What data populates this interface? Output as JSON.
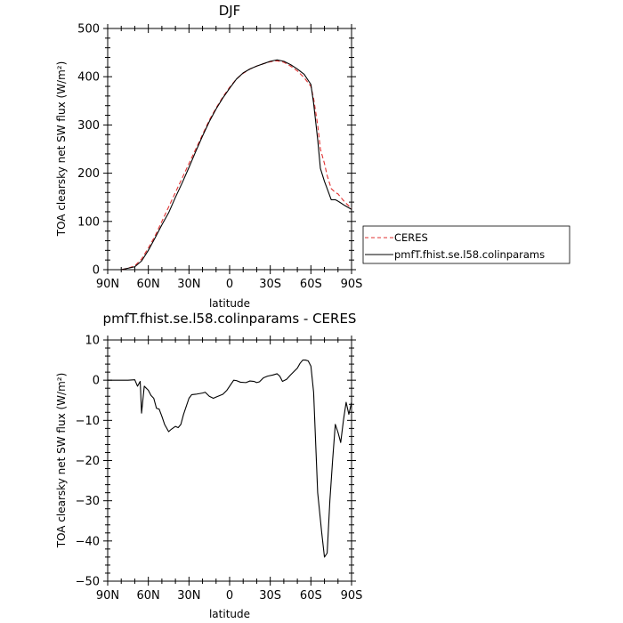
{
  "chart_data": [
    {
      "type": "line",
      "title": "DJF",
      "xlabel": "latitude",
      "ylabel": "TOA clearsky net SW flux (W/m²)",
      "xlim": [
        90,
        -90
      ],
      "ylim": [
        0,
        500
      ],
      "x_tick_labels": [
        "90N",
        "60N",
        "30N",
        "0",
        "30S",
        "60S",
        "90S"
      ],
      "y_tick_labels": [
        "0",
        "100",
        "200",
        "300",
        "400",
        "500"
      ],
      "y_ticks": [
        0,
        100,
        200,
        300,
        400,
        500
      ],
      "grid": false,
      "legend_position": "outside-right",
      "series": [
        {
          "name": "CERES",
          "color": "#e03030",
          "dash": "dashed",
          "points": [
            [
              90,
              0
            ],
            [
              80,
              0
            ],
            [
              75,
              3
            ],
            [
              70,
              8
            ],
            [
              65,
              22
            ],
            [
              60,
              45
            ],
            [
              55,
              70
            ],
            [
              50,
              100
            ],
            [
              45,
              130
            ],
            [
              40,
              160
            ],
            [
              35,
              190
            ],
            [
              30,
              220
            ],
            [
              25,
              250
            ],
            [
              20,
              280
            ],
            [
              15,
              310
            ],
            [
              10,
              335
            ],
            [
              5,
              358
            ],
            [
              0,
              378
            ],
            [
              -5,
              395
            ],
            [
              -10,
              407
            ],
            [
              -15,
              416
            ],
            [
              -20,
              422
            ],
            [
              -25,
              427
            ],
            [
              -30,
              431
            ],
            [
              -35,
              433
            ],
            [
              -40,
              430
            ],
            [
              -45,
              422
            ],
            [
              -50,
              412
            ],
            [
              -55,
              398
            ],
            [
              -60,
              380
            ],
            [
              -62,
              355
            ],
            [
              -65,
              300
            ],
            [
              -67,
              250
            ],
            [
              -70,
              220
            ],
            [
              -72,
              195
            ],
            [
              -75,
              168
            ],
            [
              -78,
              160
            ],
            [
              -80,
              157
            ],
            [
              -85,
              140
            ],
            [
              -90,
              127
            ]
          ]
        },
        {
          "name": "pmfT.fhist.se.l58.colinparams",
          "color": "#000000",
          "dash": "solid",
          "points": [
            [
              90,
              0
            ],
            [
              80,
              0
            ],
            [
              75,
              3
            ],
            [
              70,
              6
            ],
            [
              65,
              18
            ],
            [
              60,
              40
            ],
            [
              55,
              66
            ],
            [
              50,
              93
            ],
            [
              45,
              118
            ],
            [
              40,
              150
            ],
            [
              35,
              180
            ],
            [
              30,
              212
            ],
            [
              25,
              245
            ],
            [
              20,
              277
            ],
            [
              15,
              307
            ],
            [
              10,
              333
            ],
            [
              5,
              356
            ],
            [
              0,
              376
            ],
            [
              -5,
              395
            ],
            [
              -10,
              408
            ],
            [
              -15,
              416
            ],
            [
              -20,
              422
            ],
            [
              -25,
              427
            ],
            [
              -30,
              432
            ],
            [
              -35,
              435
            ],
            [
              -40,
              432
            ],
            [
              -45,
              425
            ],
            [
              -50,
              416
            ],
            [
              -55,
              405
            ],
            [
              -60,
              384
            ],
            [
              -62,
              345
            ],
            [
              -65,
              270
            ],
            [
              -67,
              210
            ],
            [
              -70,
              183
            ],
            [
              -72,
              168
            ],
            [
              -75,
              145
            ],
            [
              -78,
              145
            ],
            [
              -80,
              142
            ],
            [
              -85,
              133
            ],
            [
              -90,
              125
            ]
          ]
        }
      ]
    },
    {
      "type": "line",
      "title": "pmfT.fhist.se.l58.colinparams - CERES",
      "xlabel": "latitude",
      "ylabel": "TOA clearsky net SW flux (W/m²)",
      "xlim": [
        90,
        -90
      ],
      "ylim": [
        -50,
        10
      ],
      "x_tick_labels": [
        "90N",
        "60N",
        "30N",
        "0",
        "30S",
        "60S",
        "90S"
      ],
      "y_tick_labels": [
        "10",
        "0",
        "−10",
        "−20",
        "−30",
        "−40",
        "−50"
      ],
      "y_ticks": [
        10,
        0,
        -10,
        -20,
        -30,
        -40,
        -50
      ],
      "grid": false,
      "series": [
        {
          "name": "",
          "color": "#000000",
          "dash": "solid",
          "points": [
            [
              90,
              0
            ],
            [
              75,
              0
            ],
            [
              70,
              0.1
            ],
            [
              68,
              -1.5
            ],
            [
              66,
              -0.3
            ],
            [
              65,
              -8.2
            ],
            [
              63,
              -1.5
            ],
            [
              60,
              -2.5
            ],
            [
              58,
              -3.8
            ],
            [
              56,
              -4.5
            ],
            [
              54,
              -7
            ],
            [
              52,
              -7.2
            ],
            [
              50,
              -9
            ],
            [
              48,
              -11
            ],
            [
              45,
              -12.8
            ],
            [
              43,
              -12.2
            ],
            [
              40,
              -11.5
            ],
            [
              38,
              -11.8
            ],
            [
              36,
              -11
            ],
            [
              34,
              -8.5
            ],
            [
              30,
              -4.5
            ],
            [
              28,
              -3.6
            ],
            [
              25,
              -3.5
            ],
            [
              20,
              -3.2
            ],
            [
              18,
              -3.0
            ],
            [
              15,
              -4
            ],
            [
              12,
              -4.5
            ],
            [
              10,
              -4.2
            ],
            [
              5,
              -3.5
            ],
            [
              2,
              -2.5
            ],
            [
              0,
              -1.5
            ],
            [
              -3,
              0
            ],
            [
              -5,
              -0.1
            ],
            [
              -8,
              -0.5
            ],
            [
              -12,
              -0.6
            ],
            [
              -15,
              -0.2
            ],
            [
              -18,
              -0.3
            ],
            [
              -20,
              -0.6
            ],
            [
              -22,
              -0.4
            ],
            [
              -25,
              0.6
            ],
            [
              -28,
              1
            ],
            [
              -32,
              1.3
            ],
            [
              -35,
              1.6
            ],
            [
              -37,
              1
            ],
            [
              -39,
              -0.3
            ],
            [
              -42,
              0.2
            ],
            [
              -45,
              1.3
            ],
            [
              -50,
              3
            ],
            [
              -52,
              4.2
            ],
            [
              -54,
              5
            ],
            [
              -56,
              5
            ],
            [
              -58,
              4.8
            ],
            [
              -60,
              3.5
            ],
            [
              -62,
              -3
            ],
            [
              -65,
              -28
            ],
            [
              -68,
              -38
            ],
            [
              -70,
              -44
            ],
            [
              -72,
              -43
            ],
            [
              -74,
              -30
            ],
            [
              -76,
              -20
            ],
            [
              -78,
              -11
            ],
            [
              -80,
              -13
            ],
            [
              -82,
              -15.5
            ],
            [
              -84,
              -10
            ],
            [
              -86,
              -5.5
            ],
            [
              -88,
              -8.5
            ],
            [
              -90,
              -5.5
            ]
          ]
        }
      ]
    }
  ]
}
